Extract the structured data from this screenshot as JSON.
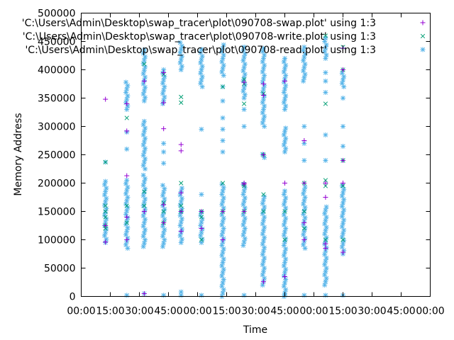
{
  "chart_data": {
    "type": "scatter",
    "xlabel": "Time",
    "ylabel": "Memory Address",
    "x_tick_labels": [
      "00:00",
      "15:00",
      "30:00",
      "45:00",
      "00:00",
      "15:00",
      "30:00",
      "45:00",
      "00:00",
      "15:00",
      "30:00",
      "45:00",
      "00:00"
    ],
    "y_tick_labels": [
      "0",
      "50000",
      "100000",
      "150000",
      "200000",
      "250000",
      "300000",
      "350000",
      "400000",
      "450000",
      "500000"
    ],
    "ylim": [
      0,
      500000
    ],
    "grid": false,
    "legend_position": "top-right",
    "x_ticks_minutes": [
      0,
      15,
      30,
      45,
      60,
      75,
      90,
      105,
      120,
      135,
      150,
      165,
      180
    ],
    "xlim_minutes": [
      0,
      180
    ],
    "series": [
      {
        "name": "'C:\\Users\\Admin\\Desktop\\swap_tracer\\plot\\090708-swap.plot' using 1:3",
        "marker": "plus",
        "color": "#9400d3",
        "points": [
          [
            12.5,
            348000
          ],
          [
            12.5,
            125000
          ],
          [
            12.5,
            96000
          ],
          [
            23.5,
            340000
          ],
          [
            23.5,
            292000
          ],
          [
            23.5,
            213000
          ],
          [
            23.5,
            140000
          ],
          [
            23.5,
            100000
          ],
          [
            32.5,
            380000
          ],
          [
            32.5,
            5000
          ],
          [
            32.5,
            150000
          ],
          [
            42.5,
            395000
          ],
          [
            42.5,
            342000
          ],
          [
            42.5,
            296000
          ],
          [
            42.5,
            162000
          ],
          [
            42.5,
            130000
          ],
          [
            51.5,
            268000
          ],
          [
            51.5,
            257000
          ],
          [
            51.5,
            183000
          ],
          [
            51.5,
            150000
          ],
          [
            51.5,
            115000
          ],
          [
            62,
            120000
          ],
          [
            62,
            150000
          ],
          [
            73,
            150000
          ],
          [
            73,
            100000
          ],
          [
            84,
            378000
          ],
          [
            84,
            200000
          ],
          [
            84,
            198000
          ],
          [
            84,
            150000
          ],
          [
            94,
            375000
          ],
          [
            94,
            355000
          ],
          [
            94,
            250000
          ],
          [
            94,
            26000
          ],
          [
            105,
            380000
          ],
          [
            105,
            200000
          ],
          [
            105,
            35000
          ],
          [
            115,
            275000
          ],
          [
            115,
            200000
          ],
          [
            115,
            130000
          ],
          [
            115,
            100000
          ],
          [
            126,
            93000
          ],
          [
            126,
            85000
          ],
          [
            126,
            175000
          ],
          [
            126,
            200000
          ],
          [
            135,
            438000
          ],
          [
            135,
            400000
          ],
          [
            135,
            240000
          ],
          [
            135,
            78000
          ],
          [
            135,
            200000
          ]
        ]
      },
      {
        "name": "'C:\\Users\\Admin\\Desktop\\swap_tracer\\plot\\090708-write.plot' using 1:3",
        "marker": "x",
        "color": "#009e73",
        "points": [
          [
            12.5,
            237000
          ],
          [
            12.5,
            160000
          ],
          [
            12.5,
            150000
          ],
          [
            12.5,
            140000
          ],
          [
            12.5,
            125000
          ],
          [
            12.5,
            120000
          ],
          [
            23.5,
            315000
          ],
          [
            23.5,
            160000
          ],
          [
            23.5,
            130000
          ],
          [
            32.5,
            410000
          ],
          [
            32.5,
            185000
          ],
          [
            32.5,
            160000
          ],
          [
            42.5,
            392000
          ],
          [
            42.5,
            165000
          ],
          [
            42.5,
            150000
          ],
          [
            42.5,
            130000
          ],
          [
            51.5,
            352000
          ],
          [
            51.5,
            342000
          ],
          [
            51.5,
            200000
          ],
          [
            51.5,
            160000
          ],
          [
            51.5,
            150000
          ],
          [
            62,
            150000
          ],
          [
            62,
            140000
          ],
          [
            62,
            100000
          ],
          [
            73,
            370000
          ],
          [
            73,
            200000
          ],
          [
            73,
            150000
          ],
          [
            84,
            383000
          ],
          [
            84,
            375000
          ],
          [
            84,
            340000
          ],
          [
            84,
            198000
          ],
          [
            84,
            195000
          ],
          [
            84,
            150000
          ],
          [
            94,
            358000
          ],
          [
            94,
            250000
          ],
          [
            94,
            180000
          ],
          [
            94,
            150000
          ],
          [
            105,
            150000
          ],
          [
            105,
            100000
          ],
          [
            115,
            200000
          ],
          [
            115,
            150000
          ],
          [
            115,
            120000
          ],
          [
            126,
            460000
          ],
          [
            126,
            340000
          ],
          [
            126,
            205000
          ],
          [
            126,
            195000
          ],
          [
            126,
            100000
          ],
          [
            135,
            440000
          ],
          [
            135,
            400000
          ],
          [
            135,
            240000
          ],
          [
            135,
            195000
          ],
          [
            135,
            100000
          ]
        ]
      },
      {
        "name": "'C:\\Users\\Admin\\Desktop\\swap_tracer\\plot\\090708-read.plot' using 1:3",
        "marker": "star",
        "color": "#56b4e9",
        "points": []
      }
    ],
    "read_columns": [
      {
        "x": 12.5,
        "ranges": [
          [
            95000,
            205000
          ]
        ],
        "extra": [
          237000
        ]
      },
      {
        "x": 23.5,
        "ranges": [
          [
            85000,
            205000
          ],
          [
            330000,
            380000
          ]
        ],
        "extra": [
          2000,
          260000,
          290000
        ]
      },
      {
        "x": 32.5,
        "ranges": [
          [
            88000,
            215000
          ],
          [
            225000,
            310000
          ],
          [
            345000,
            440000
          ]
        ],
        "extra": [
          5000
        ]
      },
      {
        "x": 42.5,
        "ranges": [
          [
            88000,
            200000
          ],
          [
            340000,
            405000
          ]
        ],
        "extra": [
          2000,
          235000,
          255000,
          270000
        ]
      },
      {
        "x": 51.5,
        "ranges": [
          [
            95000,
            195000
          ],
          [
            400000,
            450000
          ]
        ],
        "extra": [
          2000,
          8000
        ]
      },
      {
        "x": 62,
        "ranges": [
          [
            95000,
            150000
          ],
          [
            370000,
            440000
          ]
        ],
        "extra": [
          180000,
          295000,
          2000
        ]
      },
      {
        "x": 73,
        "ranges": [
          [
            0,
            200000
          ],
          [
            390000,
            445000
          ]
        ],
        "extra": [
          255000,
          275000,
          295000,
          315000,
          345000,
          370000
        ]
      },
      {
        "x": 84,
        "ranges": [
          [
            90000,
            200000
          ],
          [
            350000,
            440000
          ]
        ],
        "extra": [
          2000,
          300000,
          330000
        ]
      },
      {
        "x": 94,
        "ranges": [
          [
            20000,
            180000
          ],
          [
            245000,
            255000
          ],
          [
            300000,
            440000
          ]
        ],
        "extra": []
      },
      {
        "x": 105,
        "ranges": [
          [
            0,
            190000
          ],
          [
            255000,
            300000
          ],
          [
            330000,
            420000
          ]
        ],
        "extra": [
          2000
        ]
      },
      {
        "x": 115,
        "ranges": [
          [
            85000,
            195000
          ],
          [
            380000,
            440000
          ]
        ],
        "extra": [
          2000,
          240000,
          270000,
          300000
        ]
      },
      {
        "x": 126,
        "ranges": [
          [
            20000,
            160000
          ],
          [
            420000,
            460000
          ]
        ],
        "extra": [
          2000,
          240000,
          285000,
          360000,
          380000,
          395000
        ]
      },
      {
        "x": 135,
        "ranges": [
          [
            75000,
            200000
          ],
          [
            370000,
            395000
          ]
        ],
        "extra": [
          2000,
          240000,
          265000,
          300000,
          350000
        ]
      }
    ]
  }
}
